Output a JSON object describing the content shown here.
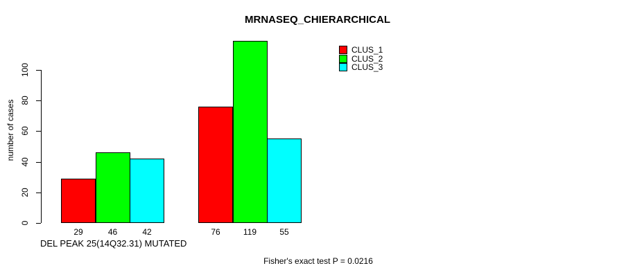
{
  "title": "MRNASEQ_CHIERARCHICAL",
  "footnote": "Fisher's exact test P = 0.0216",
  "chart_data": {
    "type": "bar",
    "title": "MRNASEQ_CHIERARCHICAL",
    "xlabel": "DEL PEAK 25(14Q32.31) MUTATED",
    "ylabel": "number of cases",
    "categories": [
      "DEL PEAK 25(14Q32.31) MUTATED",
      ""
    ],
    "series": [
      {
        "name": "CLUS_1",
        "color": "#FF0000",
        "values": [
          29,
          76
        ]
      },
      {
        "name": "CLUS_2",
        "color": "#00FF00",
        "values": [
          46,
          119
        ]
      },
      {
        "name": "CLUS_3",
        "color": "#00FFFF",
        "values": [
          42,
          55
        ]
      }
    ],
    "bar_value_labels": [
      [
        29,
        46,
        42
      ],
      [
        76,
        119,
        55
      ]
    ],
    "yticks": [
      0,
      20,
      40,
      60,
      80,
      100
    ],
    "axis_range": [
      0,
      100
    ],
    "grid": false,
    "legend_position": "top-right",
    "annotation": "Fisher's exact test P = 0.0216"
  }
}
